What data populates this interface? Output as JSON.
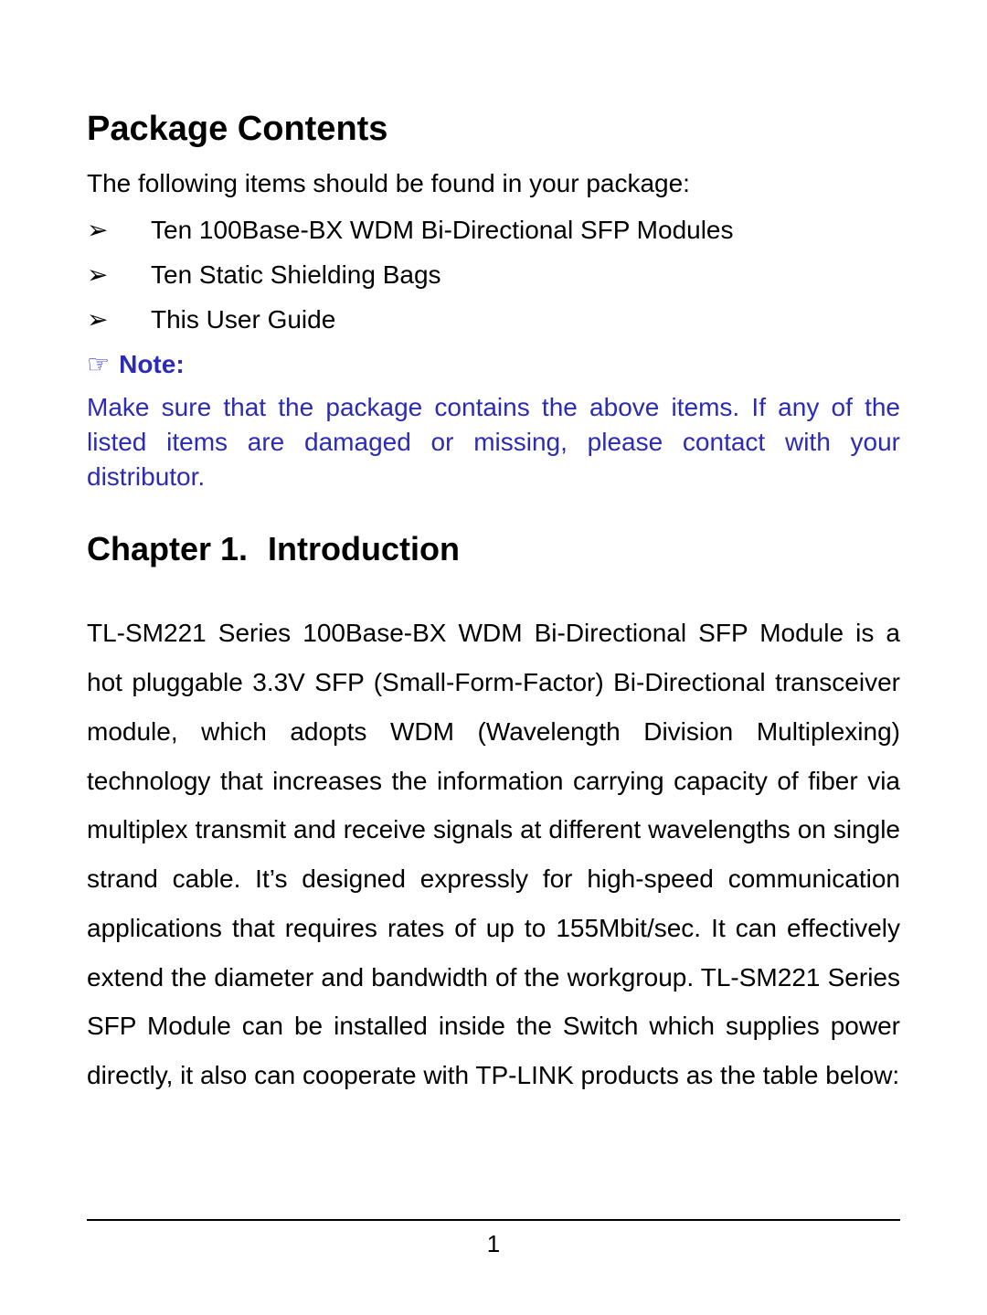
{
  "colors": {
    "background": "#ffffff",
    "text": "#000000",
    "note": "#2b2bb5",
    "rule": "#000000"
  },
  "typography": {
    "base_family": "Arial",
    "h1_size_pt": 28,
    "body_size_pt": 21,
    "chapter_size_pt": 27,
    "body_line_height": 1.92
  },
  "bullet_marker": "➢",
  "note_icon": "☞",
  "sections": {
    "package_contents": {
      "heading": "Package Contents",
      "intro": "The following items should be found in your package:",
      "items": [
        "Ten 100Base-BX WDM Bi-Directional SFP Modules",
        "Ten Static Shielding Bags",
        "This User Guide"
      ],
      "note_label": "Note:",
      "note_body": "Make sure that the package contains the above items. If any of the listed items are damaged or missing, please contact with your distributor."
    },
    "chapter": {
      "number_label": "Chapter 1.",
      "title": "Introduction",
      "body": "TL-SM221 Series 100Base-BX WDM Bi-Directional SFP Module is a hot pluggable 3.3V SFP (Small-Form-Factor) Bi-Directional transceiver module, which adopts WDM (Wavelength Division Multiplexing) technology that increases the information carrying capacity of fiber via multiplex transmit and receive signals at different wavelengths on single strand cable. It’s designed expressly for high-speed communication applications that requires rates of up to 155Mbit/sec. It can effectively extend the diameter and bandwidth of the workgroup. TL-SM221 Series SFP Module can be installed inside the Switch which supplies power directly, it also can cooperate with TP-LINK products as the table below:"
    }
  },
  "page_number": "1"
}
